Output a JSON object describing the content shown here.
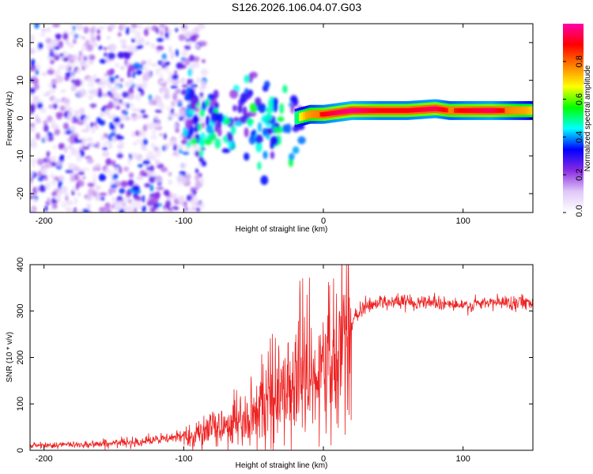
{
  "title": "S126.2026.106.04.07.G03",
  "chart_data": [
    {
      "type": "heatmap",
      "name": "spectrogram",
      "xlabel": "Height of straight line (km)",
      "ylabel": "Frequency (Hz)",
      "xlim": [
        -210,
        150
      ],
      "ylim": [
        -25,
        25
      ],
      "xticks": [
        -200,
        -100,
        0,
        100
      ],
      "yticks": [
        -20,
        -10,
        0,
        10,
        20
      ],
      "colorbar": {
        "label": "Normalized spectral amplitude",
        "range": [
          0,
          1
        ],
        "ticks": [
          "0.0",
          "0.2",
          "0.4",
          "0.6",
          "0.8"
        ],
        "tick_values": [
          0,
          0.2,
          0.4,
          0.6,
          0.8
        ],
        "colors": [
          "#ffffff",
          "#e0c8f8",
          "#8a2be2",
          "#0000ff",
          "#00ffff",
          "#00ff00",
          "#ffff00",
          "#ff8000",
          "#ff0000",
          "#ff00aa"
        ]
      },
      "ridge": {
        "description_free": true,
        "x": [
          -100,
          -90,
          -80,
          -70,
          -60,
          -50,
          -40,
          -30,
          -20,
          -10,
          0,
          10,
          20,
          40,
          60,
          80,
          90,
          100,
          120,
          150
        ],
        "y": [
          2,
          -2,
          -1,
          1,
          0,
          -1,
          -3,
          -1,
          0,
          1,
          1,
          1.5,
          2,
          2,
          2,
          2.5,
          2,
          2,
          2,
          2
        ],
        "amplitude": [
          0.2,
          0.3,
          0.35,
          0.45,
          0.45,
          0.4,
          0.45,
          0.5,
          0.6,
          0.8,
          0.9,
          0.95,
          0.98,
          0.9,
          0.9,
          0.95,
          0.85,
          0.9,
          0.95,
          0.7
        ]
      }
    },
    {
      "type": "line",
      "name": "snr",
      "xlabel": "Height of straight line (km)",
      "ylabel": "SNR (10 * v/v)",
      "xlim": [
        -210,
        150
      ],
      "ylim": [
        0,
        400
      ],
      "xticks": [
        -200,
        -100,
        0,
        100
      ],
      "yticks": [
        0,
        100,
        200,
        300,
        400
      ],
      "color": "#ee2222",
      "envelope": {
        "x": [
          -210,
          -180,
          -150,
          -120,
          -100,
          -80,
          -60,
          -50,
          -40,
          -30,
          -20,
          -15,
          -10,
          -5,
          0,
          5,
          10,
          15,
          20,
          25,
          30,
          40,
          60,
          80,
          100,
          120,
          150
        ],
        "y": [
          10,
          12,
          15,
          22,
          30,
          45,
          65,
          85,
          110,
          130,
          150,
          165,
          170,
          160,
          185,
          205,
          220,
          240,
          270,
          295,
          310,
          320,
          320,
          320,
          310,
          318,
          320
        ]
      }
    }
  ]
}
